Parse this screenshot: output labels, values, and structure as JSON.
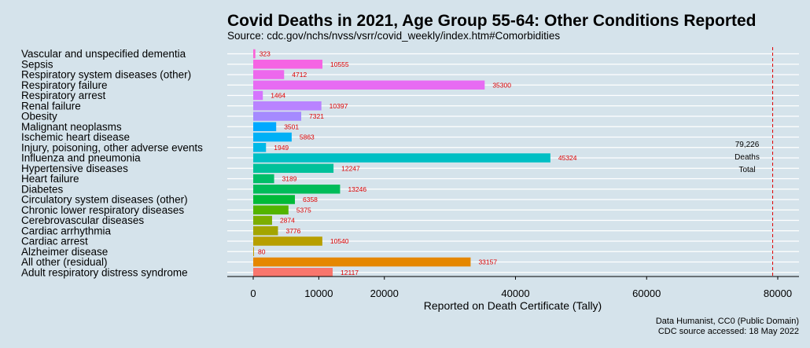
{
  "header": {
    "title": "Covid Deaths in 2021, Age Group 55-64: Other Conditions Reported",
    "subtitle": "Source: cdc.gov/nchs/nvss/vsrr/covid_weekly/index.htm#Comorbidities"
  },
  "caption": {
    "line1": "Data Humanist, CC0 (Public Domain)",
    "line2": "CDC source accessed: 18 May 2022"
  },
  "chart_data": {
    "type": "bar",
    "orientation": "horizontal",
    "title": "Covid Deaths in 2021, Age Group 55-64: Other Conditions Reported",
    "xlabel": "Reported on Death Certificate (Tally)",
    "ylabel": "",
    "xlim": [
      -4000,
      87000
    ],
    "xticks": [
      0,
      10000,
      20000,
      40000,
      60000,
      80000
    ],
    "grid": true,
    "categories": [
      "Vascular and unspecified dementia",
      "Sepsis",
      "Respiratory system diseases (other)",
      "Respiratory failure",
      "Respiratory arrest",
      "Renal failure",
      "Obesity",
      "Malignant neoplasms",
      "Ischemic heart disease",
      "Injury, poisoning, other adverse events",
      "Influenza and pneumonia",
      "Hypertensive diseases",
      "Heart failure",
      "Diabetes",
      "Circulatory system diseases (other)",
      "Chronic lower respiratory diseases",
      "Cerebrovascular diseases",
      "Cardiac arrhythmia",
      "Cardiac arrest",
      "Alzheimer disease",
      "All other (residual)",
      "Adult respiratory distress syndrome"
    ],
    "values": [
      323,
      10555,
      4712,
      35300,
      1464,
      10397,
      7321,
      3501,
      5863,
      1949,
      45324,
      12247,
      3189,
      13246,
      6358,
      5375,
      2874,
      3776,
      10540,
      80,
      33157,
      12117
    ],
    "colors": [
      "#fb61d7",
      "#f564e3",
      "#ed68ed",
      "#e76bf3",
      "#d575fe",
      "#b983ff",
      "#a58aff",
      "#00a9ff",
      "#00b0f6",
      "#00b8e7",
      "#00bfc4",
      "#00c19a",
      "#00be67",
      "#00bc59",
      "#00ba38",
      "#53b400",
      "#7cae00",
      "#a3a500",
      "#b79f00",
      "#c49a00",
      "#e58700",
      "#f8766d"
    ],
    "reference_line": {
      "value": 79226,
      "label_lines": [
        "79,226",
        "Deaths",
        "Total"
      ]
    }
  }
}
